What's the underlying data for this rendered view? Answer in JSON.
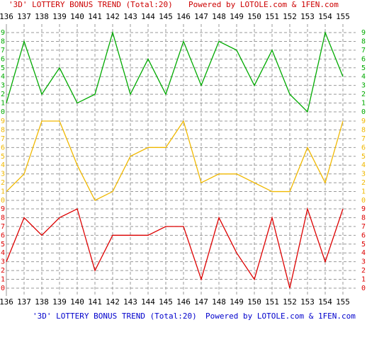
{
  "chart_data": {
    "type": "line",
    "title": "'3D' LOTTERY BONUS TREND (Total:20)",
    "subtitle": "Powered by LOTOLE.com & 1FEN.com",
    "categories": [
      "136",
      "137",
      "138",
      "139",
      "140",
      "141",
      "142",
      "143",
      "144",
      "145",
      "146",
      "147",
      "148",
      "149",
      "150",
      "151",
      "152",
      "153",
      "154",
      "155"
    ],
    "ylim": [
      0,
      9
    ],
    "yticks": [
      0,
      1,
      2,
      3,
      4,
      5,
      6,
      7,
      8,
      9
    ],
    "grid": true,
    "series": [
      {
        "color": "#00aa00",
        "values": [
          1,
          8,
          2,
          5,
          1,
          2,
          9,
          2,
          6,
          2,
          8,
          3,
          8,
          7,
          3,
          7,
          2,
          0,
          9,
          4
        ]
      },
      {
        "color": "#f0b800",
        "values": [
          1,
          3,
          9,
          9,
          4,
          0,
          1,
          5,
          6,
          6,
          9,
          2,
          3,
          3,
          2,
          1,
          1,
          6,
          2,
          9
        ]
      },
      {
        "color": "#dd0000",
        "values": [
          3,
          8,
          6,
          8,
          9,
          2,
          6,
          6,
          6,
          7,
          7,
          1,
          8,
          4,
          1,
          8,
          0,
          9,
          3,
          9
        ]
      }
    ]
  }
}
